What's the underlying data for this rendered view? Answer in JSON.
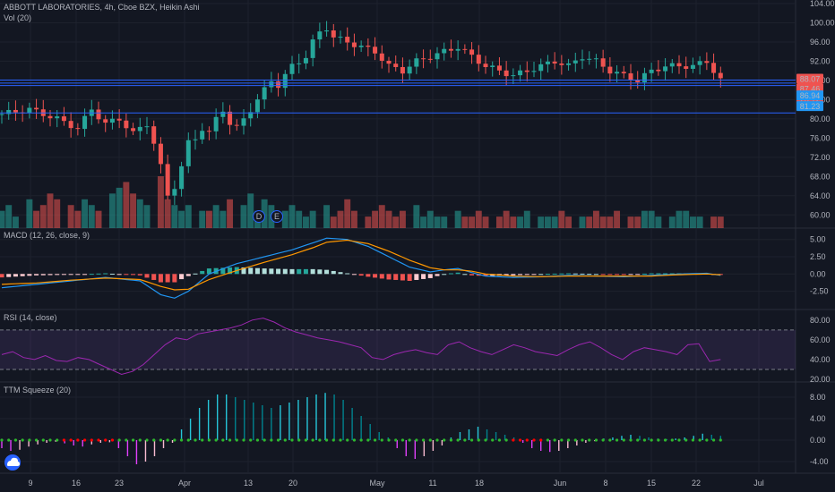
{
  "colors": {
    "background": "#131722",
    "grid": "#1e222d",
    "up": "#26a69a",
    "down": "#ef5350",
    "hline": "#2962ff",
    "macd_line": "#2196f3",
    "signal_line": "#ff9800",
    "rsi_line": "#9c27b0",
    "rsi_band": "#7e57c2",
    "squeeze_on": "#ff0000",
    "squeeze_off": "#2eb82e",
    "text": "#b2b5be"
  },
  "header": {
    "title": "ABBOTT LABORATORIES, 4h, Cboe BZX, Heikin Ashi",
    "volume": "Vol (20)"
  },
  "price_badges": [
    {
      "text": "88.07",
      "color": "#ef5350"
    },
    {
      "text": "87.46",
      "color": "#ef5350"
    },
    {
      "text": "26:12",
      "color": "#ef5350"
    },
    {
      "text": "86.94",
      "color": "#2196f3"
    },
    {
      "text": "81.23",
      "color": "#2196f3"
    }
  ],
  "logo_icon": "tradingview-cloud-icon",
  "event_markers": [
    "D",
    "E"
  ],
  "chart_data": [
    {
      "type": "candlestick",
      "name": "price",
      "x": [
        "9",
        "16",
        "23",
        "Apr",
        "13",
        "20",
        "May",
        "11",
        "18",
        "Jun",
        "8",
        "15",
        "22",
        "Jul"
      ],
      "ylim": [
        58,
        104
      ],
      "yticks": [
        "104.00",
        "100.00",
        "96.00",
        "92.00",
        "88.00",
        "84.00",
        "80.00",
        "76.00",
        "72.00",
        "68.00",
        "64.00",
        "60.00"
      ],
      "horizontal_lines": [
        88.07,
        87.46,
        86.94,
        81.23
      ],
      "close_path": [
        [
          0,
          81
        ],
        [
          4,
          82
        ],
        [
          8,
          80
        ],
        [
          11,
          78
        ],
        [
          13,
          82
        ],
        [
          15,
          79
        ],
        [
          17,
          80
        ],
        [
          19,
          77
        ],
        [
          21,
          79
        ],
        [
          22,
          75
        ],
        [
          23,
          70
        ],
        [
          24,
          64
        ],
        [
          25,
          66
        ],
        [
          26,
          70
        ],
        [
          27,
          75
        ],
        [
          28,
          76
        ],
        [
          29,
          78
        ],
        [
          30,
          77
        ],
        [
          31,
          80
        ],
        [
          32,
          82
        ],
        [
          33,
          79
        ],
        [
          34,
          78
        ],
        [
          35,
          80
        ],
        [
          36,
          82
        ],
        [
          37,
          84
        ],
        [
          38,
          86
        ],
        [
          39,
          88
        ],
        [
          40,
          87
        ],
        [
          42,
          91
        ],
        [
          44,
          93
        ],
        [
          45,
          96
        ],
        [
          46,
          98
        ],
        [
          47,
          99
        ],
        [
          48,
          97
        ],
        [
          50,
          96
        ],
        [
          52,
          95
        ],
        [
          54,
          94
        ],
        [
          56,
          91
        ],
        [
          58,
          90
        ],
        [
          60,
          92
        ],
        [
          62,
          93
        ],
        [
          64,
          94
        ],
        [
          66,
          95
        ],
        [
          68,
          93
        ],
        [
          70,
          91
        ],
        [
          72,
          90
        ],
        [
          74,
          89
        ],
        [
          76,
          90
        ],
        [
          78,
          91
        ],
        [
          80,
          92
        ],
        [
          82,
          91
        ],
        [
          84,
          93
        ],
        [
          86,
          92
        ],
        [
          88,
          90
        ],
        [
          90,
          89
        ],
        [
          92,
          88
        ],
        [
          94,
          90
        ],
        [
          96,
          91
        ],
        [
          98,
          91
        ],
        [
          100,
          91
        ],
        [
          102,
          92
        ],
        [
          103,
          90
        ],
        [
          104,
          88
        ]
      ]
    },
    {
      "type": "bar",
      "name": "Vol (20)",
      "values": [
        3,
        4,
        2,
        5,
        3,
        4,
        6,
        5,
        4,
        3,
        5,
        4,
        3,
        6,
        7,
        8,
        6,
        5,
        4,
        9,
        5,
        4,
        3,
        4,
        3,
        3,
        4,
        3,
        5,
        4,
        6,
        3,
        5,
        4,
        3,
        4,
        3,
        2,
        3,
        4,
        2,
        3,
        5,
        3,
        2,
        3,
        4,
        3,
        2,
        3,
        4,
        2,
        3,
        2,
        2,
        3,
        2,
        2,
        3,
        2,
        2,
        3,
        2,
        2,
        3,
        2,
        2,
        2,
        3,
        2,
        2,
        2,
        3,
        2,
        2,
        3,
        2,
        2,
        3,
        3,
        2,
        2,
        3,
        3,
        2,
        2,
        2,
        2
      ]
    },
    {
      "type": "line",
      "name": "MACD (12, 26, close, 9)",
      "ylim": [
        -4.5,
        6
      ],
      "yticks": [
        "5.00",
        "2.50",
        "0.00",
        "-2.50"
      ],
      "macd": [
        [
          0,
          -2
        ],
        [
          5,
          -1.5
        ],
        [
          10,
          -1
        ],
        [
          15,
          -0.5
        ],
        [
          20,
          -1
        ],
        [
          23,
          -3
        ],
        [
          25,
          -3.5
        ],
        [
          27,
          -2.5
        ],
        [
          30,
          0
        ],
        [
          34,
          1.5
        ],
        [
          38,
          2.5
        ],
        [
          42,
          3.5
        ],
        [
          45,
          4.5
        ],
        [
          47,
          5.2
        ],
        [
          50,
          5
        ],
        [
          53,
          4
        ],
        [
          56,
          2.5
        ],
        [
          59,
          1
        ],
        [
          62,
          0.3
        ],
        [
          64,
          0.6
        ],
        [
          66,
          0.8
        ],
        [
          68,
          0.2
        ],
        [
          70,
          -0.3
        ],
        [
          74,
          -0.5
        ],
        [
          78,
          -0.4
        ],
        [
          82,
          -0.2
        ],
        [
          86,
          -0.3
        ],
        [
          90,
          -0.4
        ],
        [
          94,
          -0.2
        ],
        [
          98,
          0
        ],
        [
          102,
          0.1
        ],
        [
          104,
          -0.2
        ]
      ],
      "signal": [
        [
          0,
          -1.5
        ],
        [
          5,
          -1.3
        ],
        [
          10,
          -0.9
        ],
        [
          15,
          -0.6
        ],
        [
          20,
          -0.8
        ],
        [
          23,
          -1.8
        ],
        [
          25,
          -2.3
        ],
        [
          27,
          -2.2
        ],
        [
          30,
          -0.8
        ],
        [
          34,
          0.5
        ],
        [
          38,
          1.7
        ],
        [
          42,
          2.8
        ],
        [
          45,
          3.8
        ],
        [
          47,
          4.6
        ],
        [
          50,
          4.9
        ],
        [
          53,
          4.4
        ],
        [
          56,
          3.3
        ],
        [
          59,
          2
        ],
        [
          62,
          0.9
        ],
        [
          64,
          0.6
        ],
        [
          66,
          0.6
        ],
        [
          68,
          0.4
        ],
        [
          70,
          0
        ],
        [
          74,
          -0.3
        ],
        [
          78,
          -0.4
        ],
        [
          82,
          -0.3
        ],
        [
          86,
          -0.3
        ],
        [
          90,
          -0.3
        ],
        [
          94,
          -0.3
        ],
        [
          98,
          -0.1
        ],
        [
          102,
          0
        ],
        [
          104,
          -0.1
        ]
      ]
    },
    {
      "type": "line",
      "name": "RSI (14, close)",
      "ylim": [
        20,
        88
      ],
      "yticks": [
        "80.00",
        "60.00",
        "40.00",
        "20.00"
      ],
      "upper_band": 70,
      "lower_band": 30,
      "values": [
        45,
        48,
        42,
        40,
        44,
        39,
        38,
        42,
        40,
        35,
        30,
        25,
        28,
        35,
        45,
        55,
        62,
        60,
        66,
        68,
        70,
        72,
        75,
        80,
        82,
        78,
        72,
        68,
        65,
        62,
        60,
        58,
        55,
        52,
        42,
        40,
        45,
        48,
        50,
        47,
        45,
        55,
        58,
        52,
        48,
        45,
        50,
        55,
        52,
        48,
        46,
        44,
        50,
        55,
        58,
        52,
        45,
        40,
        48,
        52,
        50,
        48,
        45,
        55,
        56,
        38,
        40
      ]
    },
    {
      "type": "bar",
      "name": "TTM Squeeze (20)",
      "ylim": [
        -6,
        10
      ],
      "yticks": [
        "8.00",
        "4.00",
        "0.00",
        "-4.00"
      ],
      "values": [
        -1.5,
        -2,
        -1.8,
        -1.2,
        -0.8,
        -0.5,
        -0.3,
        -0.6,
        -1,
        -1.2,
        -0.8,
        -0.5,
        -0.4,
        -1.5,
        -3,
        -4.5,
        -4,
        -3,
        -1.5,
        -0.5,
        2,
        4,
        6,
        7.5,
        8.5,
        8.5,
        8,
        7.5,
        7,
        6.5,
        6,
        6.5,
        7,
        7.5,
        8,
        8.5,
        8.8,
        8.5,
        7.5,
        6,
        4.5,
        3,
        1.5,
        0.5,
        -1.5,
        -3,
        -3.5,
        -3,
        -2,
        -1,
        0.5,
        1.5,
        2,
        2.5,
        2,
        1.5,
        1,
        0.5,
        -0.5,
        -1.5,
        -2,
        -2.2,
        -2,
        -1.5,
        -1,
        -0.5,
        -0.2,
        0.3,
        0.5,
        0.8,
        1,
        0.8,
        0.5,
        0.3,
        0.2,
        0.3,
        0.5,
        0.8,
        1.2,
        1,
        0.8
      ]
    }
  ]
}
